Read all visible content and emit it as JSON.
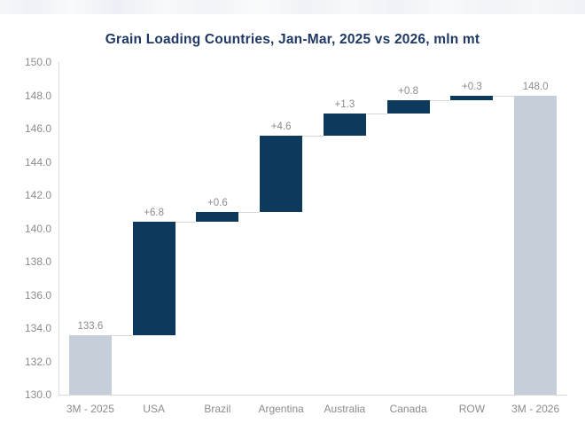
{
  "chart_data": {
    "type": "bar",
    "subtype": "waterfall",
    "title": "Grain Loading Countries, Jan-Mar, 2025 vs 2026, mln mt",
    "categories": [
      "3M - 2025",
      "USA",
      "Brazil",
      "Argentina",
      "Australia",
      "Canada",
      "ROW",
      "3M - 2026"
    ],
    "values": [
      133.6,
      6.8,
      0.6,
      4.6,
      1.3,
      0.8,
      0.3,
      148.0
    ],
    "bar_labels": [
      "133.6",
      "+6.8",
      "+0.6",
      "+4.6",
      "+1.3",
      "+0.8",
      "+0.3",
      "148.0"
    ],
    "bar_roles": [
      "total",
      "increase",
      "increase",
      "increase",
      "increase",
      "increase",
      "increase",
      "total"
    ],
    "cumulative": [
      133.6,
      140.4,
      141.0,
      145.6,
      146.9,
      147.7,
      148.0,
      148.0
    ],
    "xlabel": "",
    "ylabel": "",
    "ylim": [
      130.0,
      150.0
    ],
    "ytick_step": 2.0,
    "ytick_labels": [
      "150.0",
      "148.0",
      "146.0",
      "144.0",
      "142.0",
      "140.0",
      "138.0",
      "136.0",
      "134.0",
      "132.0",
      "130.0"
    ],
    "grid": false,
    "legend": false,
    "connectors": true,
    "colors": {
      "total_bar": "#c6ceda",
      "increase_bar": "#0d3a5c",
      "axis_line": "#d9d9d9",
      "connector_line": "#d9d9d9",
      "tick_label": "#8c8c8c",
      "value_label": "#8c8c8c",
      "title": "#1f3864",
      "background": "#ffffff"
    }
  }
}
